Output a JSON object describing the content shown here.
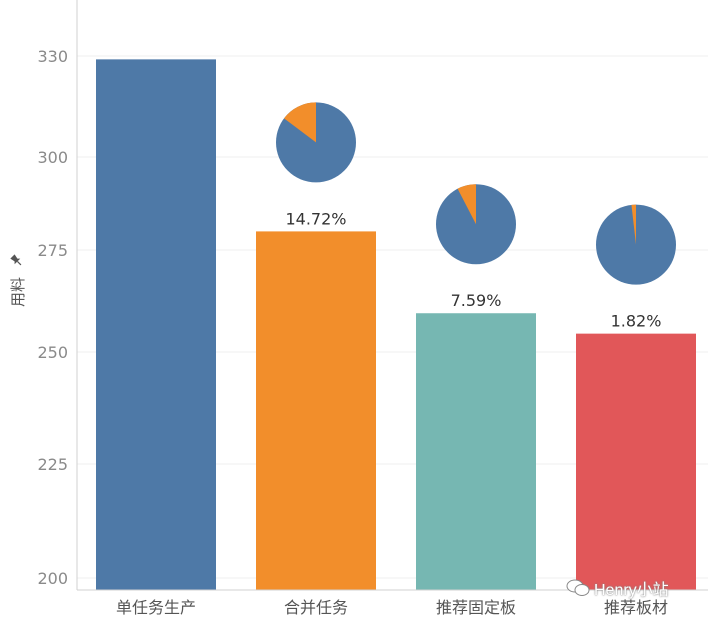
{
  "chart_data": {
    "type": "bar",
    "ylabel": "用料",
    "ylim": [
      196,
      340
    ],
    "yticks": [
      200,
      225,
      250,
      275,
      300,
      330
    ],
    "grid": true,
    "categories": [
      "单任务生产",
      "合并任务",
      "推荐固定板",
      "推荐板材"
    ],
    "values": [
      329,
      280,
      259.5,
      254.5
    ],
    "data_labels": [
      "",
      "14.72%",
      "7.59%",
      "1.82%"
    ],
    "savings_pct": [
      null,
      14.72,
      7.59,
      1.82
    ],
    "colors": [
      "#4e79a7",
      "#f28e2b",
      "#76b7b2",
      "#e15759"
    ],
    "pie_colors": {
      "rest": "#4e79a7",
      "saved": "#f28e2b"
    }
  },
  "watermark": {
    "text": "Henry小站"
  }
}
